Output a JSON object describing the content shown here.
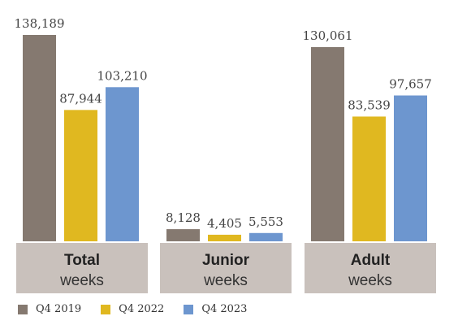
{
  "chart_data": {
    "type": "bar",
    "categories": [
      {
        "bold": "Total",
        "sub": "weeks"
      },
      {
        "bold": "Junior",
        "sub": "weeks"
      },
      {
        "bold": "Adult",
        "sub": "weeks"
      }
    ],
    "series": [
      {
        "name": "Q4 2019",
        "color": "#857970",
        "values": [
          138189,
          8128,
          130061
        ],
        "labels": [
          "138,189",
          "8,128",
          "130,061"
        ]
      },
      {
        "name": "Q4 2022",
        "color": "#E0B820",
        "values": [
          87944,
          4405,
          83539
        ],
        "labels": [
          "87,944",
          "4,405",
          "83,539"
        ]
      },
      {
        "name": "Q4 2023",
        "color": "#6D96CF",
        "values": [
          103210,
          5553,
          97657
        ],
        "labels": [
          "103,210",
          "5,553",
          "97,657"
        ]
      }
    ],
    "title": "",
    "xlabel": "",
    "ylabel": "",
    "ylim": [
      0,
      138189
    ],
    "grid": false,
    "legend_position": "bottom-left",
    "category_box_color": "#C9C1BC"
  }
}
